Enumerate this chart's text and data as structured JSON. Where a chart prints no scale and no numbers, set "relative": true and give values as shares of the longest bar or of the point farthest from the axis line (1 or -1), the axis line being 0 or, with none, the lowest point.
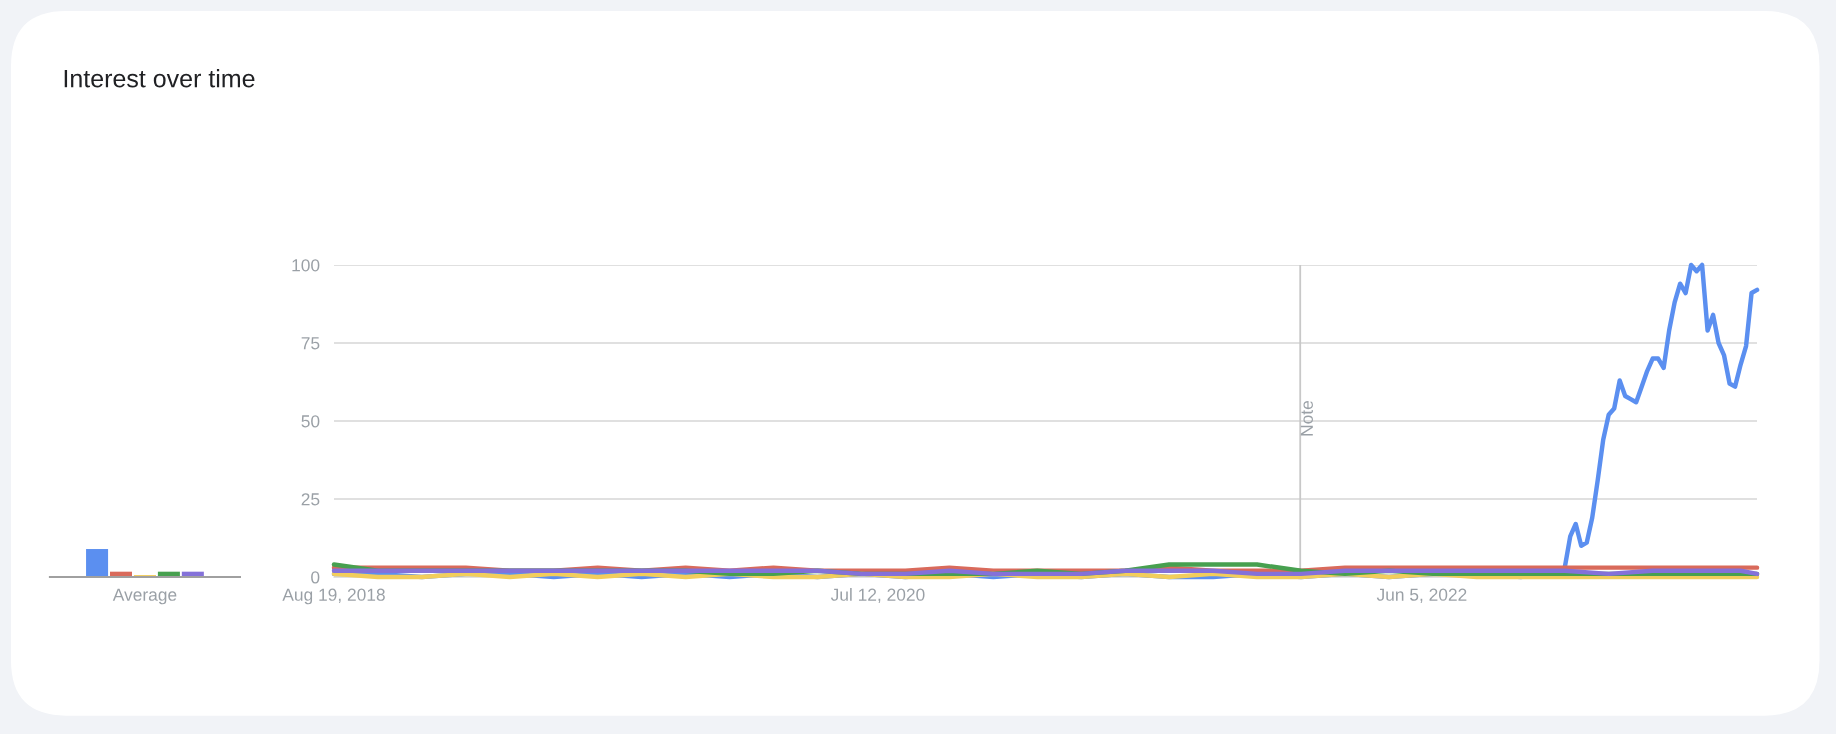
{
  "chart_data": [
    {
      "type": "bar",
      "title": "Interest over time",
      "categories": [
        "Average"
      ],
      "relative": true,
      "series": [
        {
          "color": "#5b8ff0",
          "values": [
            1
          ]
        },
        {
          "color": "#d96a5b",
          "values": [
            0.19
          ]
        },
        {
          "color": "#f2cd5c",
          "values": [
            0.07
          ]
        },
        {
          "color": "#47a04f",
          "values": [
            0.19
          ]
        },
        {
          "color": "#8471d9",
          "values": [
            0.19
          ]
        }
      ]
    },
    {
      "type": "line",
      "ylim": [
        0,
        100
      ],
      "yticks": [
        0,
        25,
        50,
        75,
        100
      ],
      "grid": "y",
      "xlim": [
        "2018-08-19",
        "2023-08-06"
      ],
      "xticks": [
        {
          "value": "2018-08-19",
          "label": "Aug 19, 2018"
        },
        {
          "value": "2020-07-12",
          "label": "Jul 12, 2020"
        },
        {
          "value": "2022-06-05",
          "label": "Jun 5, 2022"
        }
      ],
      "ref_lines": [
        {
          "axis": "x",
          "value": "2022-01-01",
          "label": "Note",
          "color": "#c8c8c8"
        }
      ],
      "x": [
        "2018-08-19",
        "2018-10-14",
        "2018-12-09",
        "2019-02-03",
        "2019-03-31",
        "2019-05-26",
        "2019-07-21",
        "2019-09-15",
        "2019-11-10",
        "2020-01-05",
        "2020-03-01",
        "2020-04-26",
        "2020-06-21",
        "2020-08-16",
        "2020-10-11",
        "2020-12-06",
        "2021-01-31",
        "2021-03-28",
        "2021-05-23",
        "2021-07-18",
        "2021-09-12",
        "2021-11-07",
        "2022-01-02",
        "2022-02-27",
        "2022-04-24",
        "2022-06-19",
        "2022-08-14",
        "2022-10-09",
        "2022-12-04",
        "2023-01-29",
        "2023-03-26",
        "2023-05-21",
        "2023-07-16",
        "2023-08-06"
      ],
      "series": [
        {
          "color": "#5b8ff0",
          "x": [
            "2018-08-19",
            "2018-10-14",
            "2018-12-09",
            "2019-02-03",
            "2019-03-31",
            "2019-05-26",
            "2019-07-21",
            "2019-09-15",
            "2019-11-10",
            "2020-01-05",
            "2020-03-01",
            "2020-04-26",
            "2020-06-21",
            "2020-08-16",
            "2020-10-11",
            "2020-12-06",
            "2021-01-31",
            "2021-03-28",
            "2021-05-23",
            "2021-07-18",
            "2021-09-12",
            "2021-11-07",
            "2022-01-02",
            "2022-02-27",
            "2022-04-24",
            "2022-06-19",
            "2022-08-14",
            "2022-10-09",
            "2022-11-06",
            "2022-11-27",
            "2022-12-04",
            "2022-12-11",
            "2022-12-18",
            "2022-12-25",
            "2023-01-01",
            "2023-01-08",
            "2023-01-15",
            "2023-01-22",
            "2023-01-29",
            "2023-02-05",
            "2023-02-12",
            "2023-02-19",
            "2023-02-26",
            "2023-03-05",
            "2023-03-12",
            "2023-03-19",
            "2023-03-26",
            "2023-04-02",
            "2023-04-09",
            "2023-04-16",
            "2023-04-23",
            "2023-04-30",
            "2023-05-07",
            "2023-05-14",
            "2023-05-21",
            "2023-05-28",
            "2023-06-04",
            "2023-06-11",
            "2023-06-18",
            "2023-06-25",
            "2023-07-02",
            "2023-07-09",
            "2023-07-16",
            "2023-07-23",
            "2023-07-30",
            "2023-08-06"
          ],
          "values": [
            1,
            1,
            0,
            1,
            1,
            0,
            1,
            0,
            1,
            0,
            1,
            0,
            1,
            0,
            1,
            0,
            1,
            0,
            1,
            0,
            0,
            1,
            0,
            1,
            0,
            1,
            1,
            0,
            1,
            1,
            3,
            13,
            17,
            10,
            11,
            19,
            31,
            44,
            52,
            54,
            63,
            58,
            57,
            56,
            61,
            66,
            70,
            70,
            67,
            79,
            88,
            94,
            91,
            100,
            98,
            100,
            79,
            84,
            75,
            71,
            62,
            61,
            68,
            74,
            91,
            92
          ]
        },
        {
          "color": "#d96a5b",
          "values": [
            3,
            3,
            3,
            3,
            2,
            2,
            3,
            2,
            3,
            2,
            3,
            2,
            2,
            2,
            3,
            2,
            2,
            2,
            2,
            3,
            2,
            2,
            2,
            3,
            3,
            3,
            3,
            3,
            3,
            3,
            3,
            3,
            3,
            3
          ]
        },
        {
          "color": "#f2cd5c",
          "values": [
            1,
            0,
            0,
            1,
            0,
            1,
            0,
            1,
            0,
            1,
            0,
            0,
            1,
            0,
            0,
            1,
            0,
            0,
            1,
            0,
            1,
            0,
            0,
            1,
            0,
            1,
            0,
            0,
            0,
            0,
            0,
            0,
            0,
            0
          ]
        },
        {
          "color": "#47a04f",
          "values": [
            4,
            2,
            2,
            2,
            2,
            2,
            2,
            2,
            2,
            1,
            1,
            2,
            1,
            1,
            1,
            1,
            2,
            1,
            2,
            4,
            4,
            4,
            2,
            1,
            2,
            1,
            1,
            1,
            1,
            1,
            1,
            1,
            1,
            1
          ]
        },
        {
          "color": "#8471d9",
          "values": [
            2,
            2,
            2,
            2,
            2,
            2,
            2,
            2,
            2,
            2,
            2,
            2,
            1,
            1,
            2,
            1,
            1,
            1,
            2,
            2,
            2,
            1,
            1,
            2,
            2,
            2,
            2,
            2,
            2,
            1,
            2,
            2,
            2,
            1
          ]
        }
      ]
    }
  ]
}
